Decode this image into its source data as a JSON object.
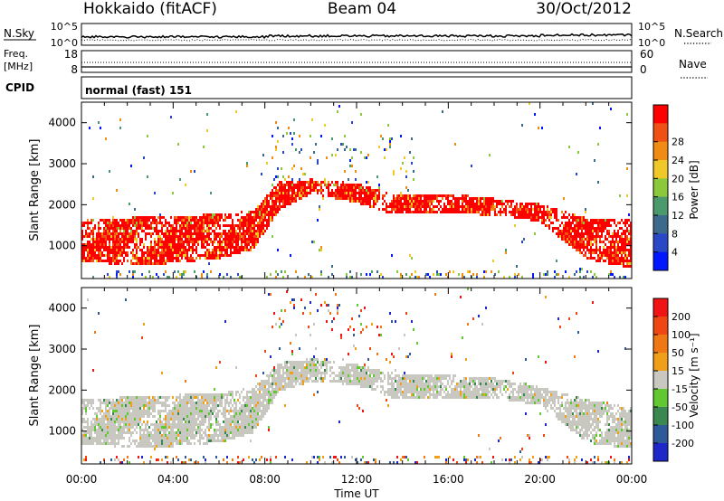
{
  "header": {
    "site": "Hokkaido (fitACF)",
    "beam": "Beam 04",
    "date": "30/Oct/2012"
  },
  "panels": {
    "nsky": {
      "label": "N.Sky",
      "ticks": [
        "10^5",
        "10^0"
      ],
      "right_ticks": [
        "10^5",
        "10^0"
      ],
      "right_label": "N.Search"
    },
    "freq": {
      "label_top": "Freq.",
      "label_unit": "[MHz]",
      "ticks": [
        "18",
        "8"
      ],
      "right_ticks": [
        "60",
        "0"
      ],
      "right_label": "Nave"
    },
    "cpid": {
      "label": "CPID",
      "value": "normal (fast) 151"
    }
  },
  "chart_data": [
    {
      "type": "heatmap",
      "name": "power",
      "xlabel": "Time UT",
      "ylabel": "Slant Range [km]",
      "x_ticks": [
        "00:00",
        "04:00",
        "08:00",
        "12:00",
        "16:00",
        "20:00",
        "00:00"
      ],
      "y_ticks": [
        1000,
        2000,
        3000,
        4000
      ],
      "xlim": [
        0,
        24
      ],
      "ylim": [
        200,
        4500
      ],
      "colorbar": {
        "label": "Power [dB]",
        "ticks": [
          "4",
          "8",
          "12",
          "16",
          "20",
          "24",
          "28"
        ],
        "colors": [
          "#0018ff",
          "#2848c8",
          "#3c6a8c",
          "#4a9a6c",
          "#8cc83c",
          "#f0c828",
          "#f08c14",
          "#f05014",
          "#ff0000"
        ]
      },
      "bands": [
        {
          "x": [
            0.0,
            3.0,
            6.0,
            7.5,
            8.6,
            10.0,
            12.0,
            13.5,
            16.0,
            18.5,
            20.0,
            22.0,
            24.0
          ],
          "low": [
            620,
            560,
            720,
            950,
            1900,
            2300,
            2080,
            1800,
            1820,
            1760,
            1600,
            700,
            480
          ],
          "high": [
            1650,
            1750,
            1800,
            1900,
            2600,
            2650,
            2550,
            2300,
            2300,
            2150,
            2050,
            1700,
            1700
          ]
        }
      ]
    },
    {
      "type": "heatmap",
      "name": "velocity",
      "xlabel": "Time UT",
      "ylabel": "Slant Range [km]",
      "x_ticks": [
        "00:00",
        "04:00",
        "08:00",
        "12:00",
        "16:00",
        "20:00",
        "00:00"
      ],
      "y_ticks": [
        1000,
        2000,
        3000,
        4000
      ],
      "xlim": [
        0,
        24
      ],
      "ylim": [
        200,
        4500
      ],
      "colorbar": {
        "label": "Velocity [m s⁻¹]",
        "ticks": [
          "200",
          "100",
          "50",
          "15",
          "-15",
          "-50",
          "-100",
          "-200"
        ],
        "colors": [
          "#1e28c8",
          "#2f5a9a",
          "#3a8850",
          "#62c832",
          "#c8c8c0",
          "#f0a018",
          "#f07814",
          "#f04614",
          "#f01414"
        ]
      },
      "bands": [
        {
          "x": [
            0.0,
            3.0,
            6.0,
            7.5,
            8.6,
            10.0,
            12.0,
            13.5,
            16.0,
            18.5,
            20.0,
            22.0,
            24.0
          ],
          "low": [
            700,
            620,
            750,
            1000,
            2000,
            2250,
            2150,
            1850,
            1850,
            1800,
            1650,
            750,
            600
          ],
          "high": [
            1800,
            1900,
            1950,
            2100,
            2700,
            2800,
            2650,
            2450,
            2400,
            2300,
            2100,
            1800,
            1600
          ]
        }
      ]
    }
  ]
}
